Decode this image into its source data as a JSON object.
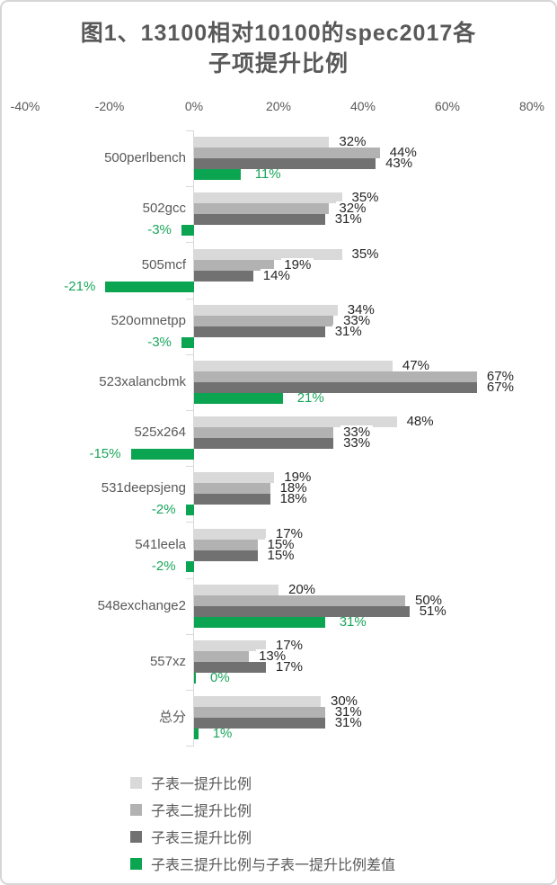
{
  "chart_data": {
    "type": "bar",
    "orientation": "horizontal",
    "title_line1": "图1、13100相对10100的spec2017各",
    "title_line2": "子项提升比例",
    "x_axis": {
      "ticks": [
        "-40%",
        "-20%",
        "0%",
        "20%",
        "40%",
        "60%",
        "80%"
      ],
      "tick_values": [
        -40,
        -20,
        0,
        20,
        40,
        60,
        80
      ],
      "min": -40,
      "max": 80,
      "grid": false
    },
    "categories": [
      "500perlbench",
      "502gcc",
      "505mcf",
      "520omnetpp",
      "523xalancbmk",
      "525x264",
      "531deepsjeng",
      "541leela",
      "548exchange2",
      "557xz",
      "总分"
    ],
    "series": [
      {
        "name": "子表一提升比例",
        "color": "#d9d9d9",
        "values": [
          32,
          35,
          35,
          34,
          47,
          48,
          19,
          17,
          20,
          17,
          30
        ]
      },
      {
        "name": "子表二提升比例",
        "color": "#b2b2b2",
        "values": [
          44,
          32,
          19,
          33,
          67,
          33,
          18,
          15,
          50,
          13,
          31
        ]
      },
      {
        "name": "子表三提升比例",
        "color": "#717171",
        "values": [
          43,
          31,
          14,
          31,
          67,
          33,
          18,
          15,
          51,
          17,
          31
        ]
      },
      {
        "name": "子表三提升比例与子表一提升比例差值",
        "color": "#0ba551",
        "values": [
          11,
          -3,
          -21,
          -3,
          21,
          -15,
          -2,
          -2,
          31,
          0,
          1
        ]
      }
    ],
    "data_label_suffix": "%",
    "legend_position": "bottom-left"
  },
  "colors": {
    "title_text": "#595959",
    "axis_text": "#595959",
    "category_text": "#595959",
    "data_label_text": "#262626",
    "green_label_text": "#1aa55c",
    "axis_line": "#d9d9d9",
    "frame_border": "#d6d6d6",
    "background": "#ffffff"
  }
}
